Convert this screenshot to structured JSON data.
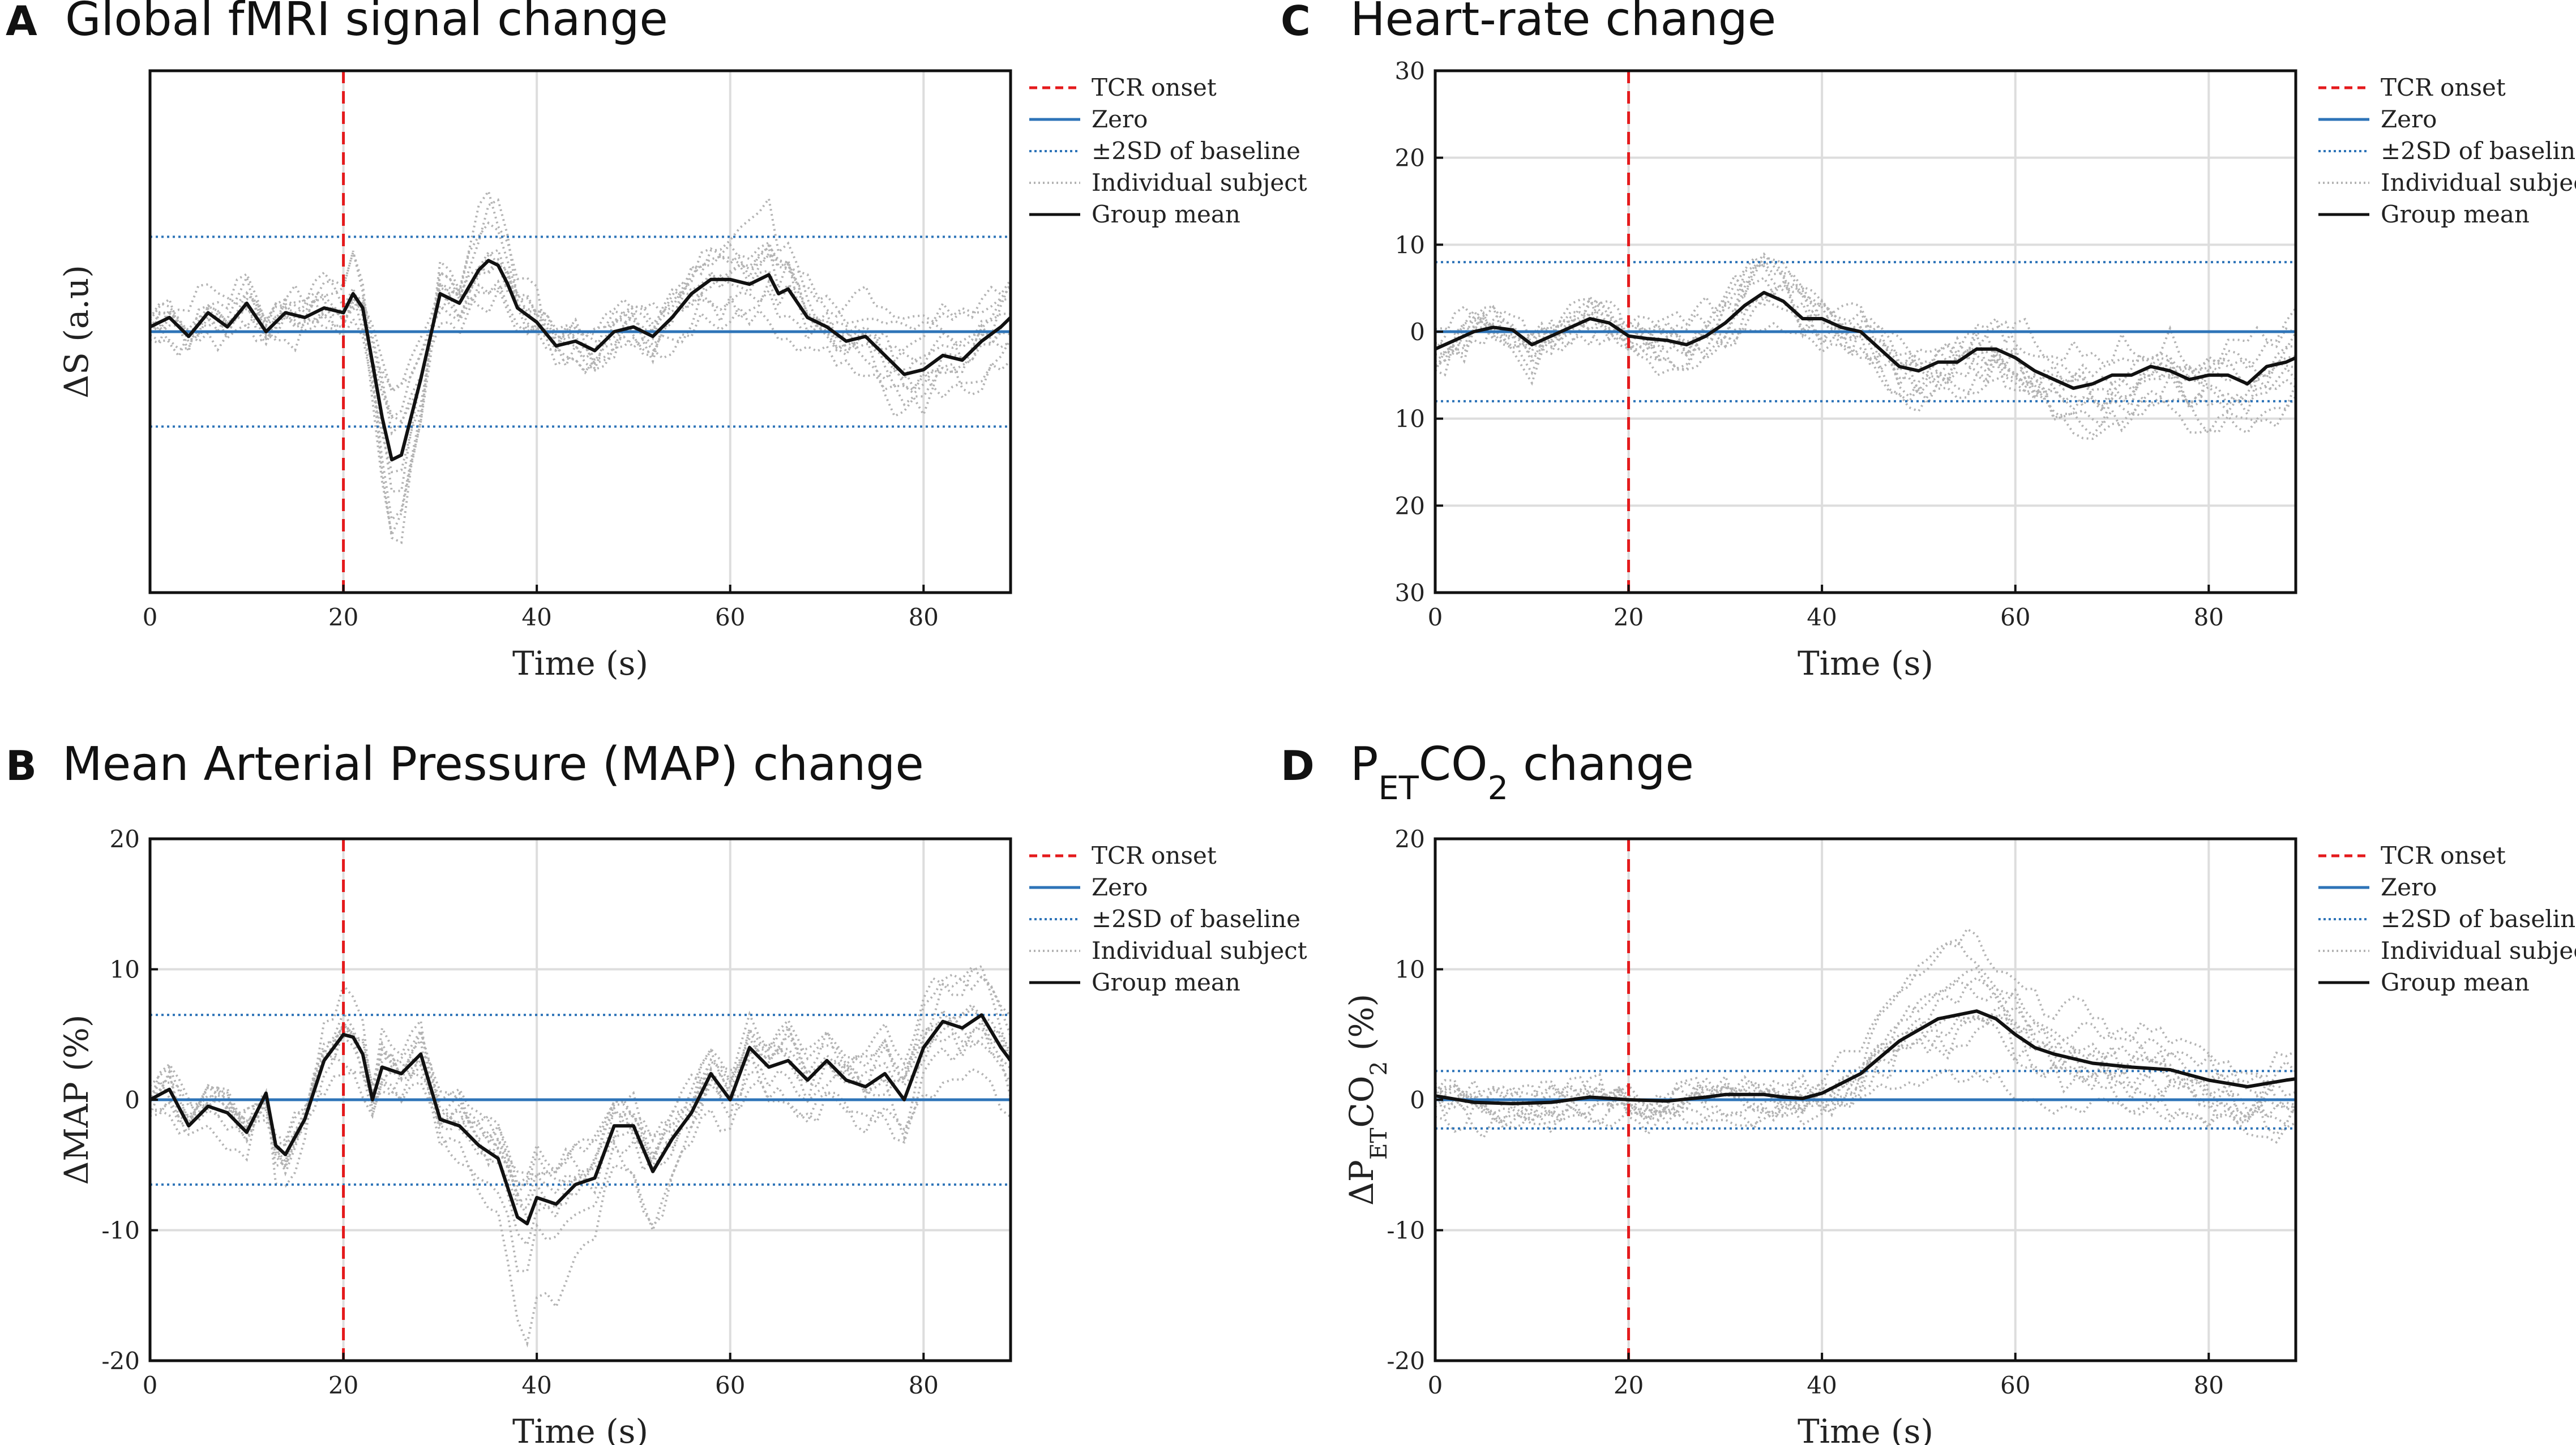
{
  "colors": {
    "tcr": "#e41a1c",
    "zero": "#2e74b8",
    "sd": "#2e74b8",
    "individual": "#b3b3b3",
    "mean": "#111111",
    "grid": "#dddddd"
  },
  "legend": [
    "TCR onset",
    "Zero",
    "±2SD of baseline",
    "Individual subject",
    "Group mean"
  ],
  "chart_data": [
    {
      "id": "A",
      "letter": "A",
      "type": "line",
      "title": "Global fMRI signal change",
      "xlabel": "Time (s)",
      "ylabel": "ΔS (a.u)",
      "xlim": [
        0,
        89
      ],
      "ylim": [
        -5.5,
        5.5
      ],
      "xticks": [
        0,
        20,
        40,
        60,
        80
      ],
      "xtick_labels": [
        "0",
        "20",
        "40",
        "60",
        "80"
      ],
      "yticks": [],
      "ytick_labels": [],
      "grid": true,
      "legend_position": "outside-right",
      "tcr_onset": 20,
      "sd_band": [
        -2.0,
        2.0
      ],
      "mean": {
        "x": [
          0,
          2,
          4,
          6,
          8,
          10,
          12,
          14,
          16,
          18,
          20,
          21,
          22,
          24,
          25,
          26,
          28,
          30,
          32,
          34,
          35,
          36,
          37,
          38,
          40,
          42,
          44,
          46,
          48,
          50,
          52,
          54,
          56,
          58,
          60,
          62,
          64,
          65,
          66,
          68,
          70,
          72,
          74,
          76,
          78,
          80,
          82,
          84,
          86,
          88,
          89
        ],
        "y": [
          0.1,
          0.3,
          -0.1,
          0.4,
          0.1,
          0.6,
          0.0,
          0.4,
          0.3,
          0.5,
          0.4,
          0.8,
          0.5,
          -1.8,
          -2.7,
          -2.6,
          -1.0,
          0.8,
          0.6,
          1.3,
          1.5,
          1.4,
          1.0,
          0.5,
          0.2,
          -0.3,
          -0.2,
          -0.4,
          0.0,
          0.1,
          -0.1,
          0.3,
          0.8,
          1.1,
          1.1,
          1.0,
          1.2,
          0.8,
          0.9,
          0.3,
          0.1,
          -0.2,
          -0.1,
          -0.5,
          -0.9,
          -0.8,
          -0.5,
          -0.6,
          -0.2,
          0.1,
          0.3
        ]
      },
      "individual_count": 10
    },
    {
      "id": "B",
      "letter": "B",
      "type": "line",
      "title": "Mean Arterial Pressure (MAP) change",
      "xlabel": "Time (s)",
      "ylabel": "ΔMAP (%)",
      "xlim": [
        0,
        89
      ],
      "ylim": [
        -20,
        20
      ],
      "xticks": [
        0,
        20,
        40,
        60,
        80
      ],
      "xtick_labels": [
        "0",
        "20",
        "40",
        "60",
        "80"
      ],
      "yticks": [
        -20,
        -10,
        0,
        10,
        20
      ],
      "ytick_labels": [
        "-20",
        "-10",
        "0",
        "10",
        "20"
      ],
      "grid": true,
      "legend_position": "top-right",
      "tcr_onset": 20,
      "sd_band": [
        -6.5,
        6.5
      ],
      "mean": {
        "x": [
          0,
          2,
          4,
          6,
          8,
          10,
          12,
          13,
          14,
          16,
          18,
          20,
          21,
          22,
          23,
          24,
          26,
          28,
          30,
          32,
          34,
          36,
          38,
          39,
          40,
          42,
          44,
          46,
          48,
          50,
          52,
          54,
          56,
          58,
          60,
          62,
          64,
          66,
          68,
          70,
          72,
          74,
          76,
          78,
          80,
          82,
          84,
          86,
          88,
          89
        ],
        "y": [
          0,
          0.8,
          -2,
          -0.5,
          -1,
          -2.5,
          0.5,
          -3.5,
          -4.2,
          -1.5,
          3,
          5,
          4.8,
          3.5,
          0,
          2.5,
          2,
          3.5,
          -1.5,
          -2,
          -3.5,
          -4.5,
          -9,
          -9.5,
          -7.5,
          -8,
          -6.5,
          -6,
          -2,
          -2,
          -5.5,
          -3,
          -1,
          2,
          0,
          4,
          2.5,
          3,
          1.5,
          3,
          1.5,
          1,
          2,
          0,
          4,
          6,
          5.5,
          6.5,
          4,
          3
        ]
      },
      "individual_count": 10
    },
    {
      "id": "C",
      "letter": "C",
      "type": "line",
      "title": "Heart-rate change",
      "xlabel": "Time (s)",
      "ylabel": "",
      "xlim": [
        0,
        89
      ],
      "ylim": [
        -30,
        30
      ],
      "xticks": [
        0,
        20,
        40,
        60,
        80
      ],
      "xtick_labels": [
        "0",
        "20",
        "40",
        "60",
        "80"
      ],
      "yticks": [
        30,
        20,
        10,
        0,
        -10,
        -20,
        -30
      ],
      "ytick_labels": [
        "30",
        "20",
        "10",
        "0",
        "10",
        "20",
        "30"
      ],
      "grid": true,
      "legend_position": "outside-right",
      "tcr_onset": 20,
      "sd_band": [
        -8,
        8
      ],
      "mean": {
        "x": [
          0,
          2,
          4,
          6,
          8,
          10,
          12,
          14,
          16,
          18,
          20,
          22,
          24,
          26,
          28,
          30,
          32,
          34,
          36,
          38,
          40,
          42,
          44,
          46,
          48,
          50,
          52,
          54,
          56,
          58,
          60,
          62,
          64,
          66,
          68,
          70,
          72,
          74,
          76,
          78,
          80,
          82,
          84,
          86,
          88,
          89
        ],
        "y": [
          -2,
          -1,
          0,
          0.5,
          0.2,
          -1.5,
          -0.5,
          0.5,
          1.5,
          1,
          -0.5,
          -0.8,
          -1,
          -1.5,
          -0.5,
          1,
          3,
          4.5,
          3.5,
          1.5,
          1.5,
          0.5,
          0,
          -2,
          -4,
          -4.5,
          -3.5,
          -3.5,
          -2,
          -2,
          -3,
          -4.5,
          -5.5,
          -6.5,
          -6,
          -5,
          -5,
          -4,
          -4.5,
          -5.5,
          -5,
          -5,
          -6,
          -4,
          -3.5,
          -3
        ]
      },
      "individual_count": 10
    },
    {
      "id": "D",
      "letter": "D",
      "type": "line",
      "title": "P_ET CO2 change",
      "title_parts": [
        "P",
        "ET",
        "CO",
        "2",
        " change"
      ],
      "xlabel": "Time (s)",
      "ylabel": "ΔP_ET CO2 (%)",
      "ylabel_parts": [
        "ΔP",
        "ET",
        "CO",
        "2",
        " (%)"
      ],
      "xlim": [
        0,
        89
      ],
      "ylim": [
        -20,
        20
      ],
      "xticks": [
        0,
        20,
        40,
        60,
        80
      ],
      "xtick_labels": [
        "0",
        "20",
        "40",
        "60",
        "80"
      ],
      "yticks": [
        -20,
        -10,
        0,
        10,
        20
      ],
      "ytick_labels": [
        "-20",
        "-10",
        "0",
        "10",
        "20"
      ],
      "grid": true,
      "legend_position": "top-right",
      "tcr_onset": 20,
      "sd_band": [
        -2.2,
        2.2
      ],
      "mean": {
        "x": [
          0,
          4,
          8,
          12,
          16,
          20,
          24,
          28,
          30,
          34,
          36,
          38,
          40,
          44,
          48,
          52,
          56,
          58,
          60,
          62,
          64,
          68,
          72,
          76,
          80,
          84,
          88,
          89
        ],
        "y": [
          0.3,
          -0.2,
          -0.3,
          -0.2,
          0.2,
          0,
          -0.1,
          0.2,
          0.4,
          0.4,
          0.2,
          0.1,
          0.5,
          2,
          4.5,
          6.2,
          6.8,
          6.2,
          5,
          4,
          3.5,
          2.8,
          2.5,
          2.3,
          1.5,
          1,
          1.5,
          1.6
        ]
      },
      "individual_count": 10
    }
  ]
}
